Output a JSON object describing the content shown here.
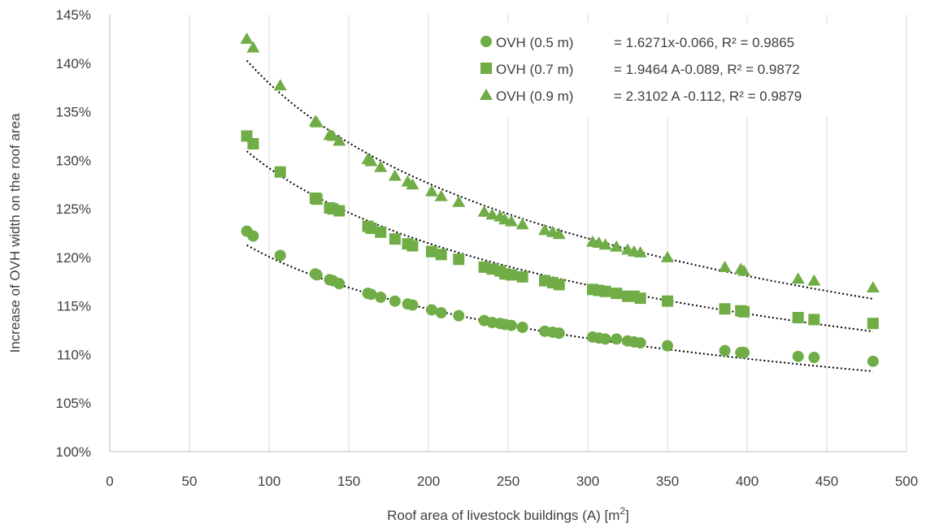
{
  "chart_data": {
    "type": "scatter",
    "xlabel": "Roof area of livestock buildings (A) [m2]",
    "ylabel": "Increase of OVH width on the roof area",
    "xlim": [
      0,
      500
    ],
    "ylim": [
      100,
      145
    ],
    "xticks": [
      "0",
      "50",
      "100",
      "150",
      "200",
      "250",
      "300",
      "350",
      "400",
      "450",
      "500"
    ],
    "yticks": [
      "100%",
      "105%",
      "110%",
      "115%",
      "120%",
      "125%",
      "130%",
      "135%",
      "140%",
      "145%"
    ],
    "grid": "vertical",
    "legend_position": "top-right",
    "x": [
      86,
      90,
      107,
      129,
      130,
      138,
      140,
      144,
      162,
      164,
      170,
      179,
      187,
      190,
      202,
      208,
      219,
      235,
      240,
      245,
      248,
      252,
      259,
      273,
      278,
      282,
      303,
      307,
      311,
      318,
      325,
      329,
      333,
      350,
      386,
      396,
      398,
      432,
      442,
      479
    ],
    "series": [
      {
        "name": "OVH (0.5 m)",
        "marker": "circle",
        "color": "#70AD47",
        "equation": "= 1.6271x-0.066, R² = 0.9865",
        "trend": {
          "a": 1.6271,
          "b": -0.066
        },
        "values": [
          122.7,
          122.2,
          120.2,
          118.3,
          118.2,
          117.7,
          117.6,
          117.3,
          116.3,
          116.2,
          115.9,
          115.5,
          115.2,
          115.1,
          114.6,
          114.3,
          114.0,
          113.5,
          113.3,
          113.2,
          113.1,
          113.0,
          112.8,
          112.4,
          112.3,
          112.2,
          111.8,
          111.7,
          111.6,
          111.6,
          111.4,
          111.3,
          111.2,
          110.9,
          110.4,
          110.2,
          110.2,
          109.8,
          109.7,
          109.3
        ]
      },
      {
        "name": "OVH (0.7 m)",
        "marker": "square",
        "color": "#70AD47",
        "equation": "= 1.9464 A-0.089, R² = 0.9872",
        "trend": {
          "a": 1.9464,
          "b": -0.089
        },
        "values": [
          132.5,
          131.7,
          128.8,
          126.1,
          126.0,
          125.1,
          125.0,
          124.8,
          123.2,
          123.0,
          122.6,
          121.9,
          121.4,
          121.2,
          120.6,
          120.3,
          119.8,
          119.0,
          118.8,
          118.6,
          118.3,
          118.2,
          118.0,
          117.6,
          117.4,
          117.2,
          116.7,
          116.6,
          116.5,
          116.3,
          116.0,
          116.0,
          115.8,
          115.5,
          114.7,
          114.5,
          114.4,
          113.8,
          113.6,
          113.2
        ]
      },
      {
        "name": "OVH (0.9 m)",
        "marker": "triangle",
        "color": "#70AD47",
        "equation": "= 2.3102 A -0.112, R² = 0.9879",
        "trend": {
          "a": 2.3102,
          "b": -0.112
        },
        "values": [
          142.5,
          141.6,
          137.7,
          134.0,
          133.9,
          132.6,
          132.5,
          132.0,
          130.1,
          129.9,
          129.3,
          128.4,
          127.8,
          127.5,
          126.8,
          126.3,
          125.7,
          124.7,
          124.4,
          124.2,
          123.9,
          123.7,
          123.4,
          122.8,
          122.6,
          122.4,
          121.6,
          121.5,
          121.3,
          121.1,
          120.8,
          120.6,
          120.5,
          120.0,
          119.0,
          118.8,
          118.6,
          117.8,
          117.6,
          116.9
        ]
      }
    ]
  }
}
